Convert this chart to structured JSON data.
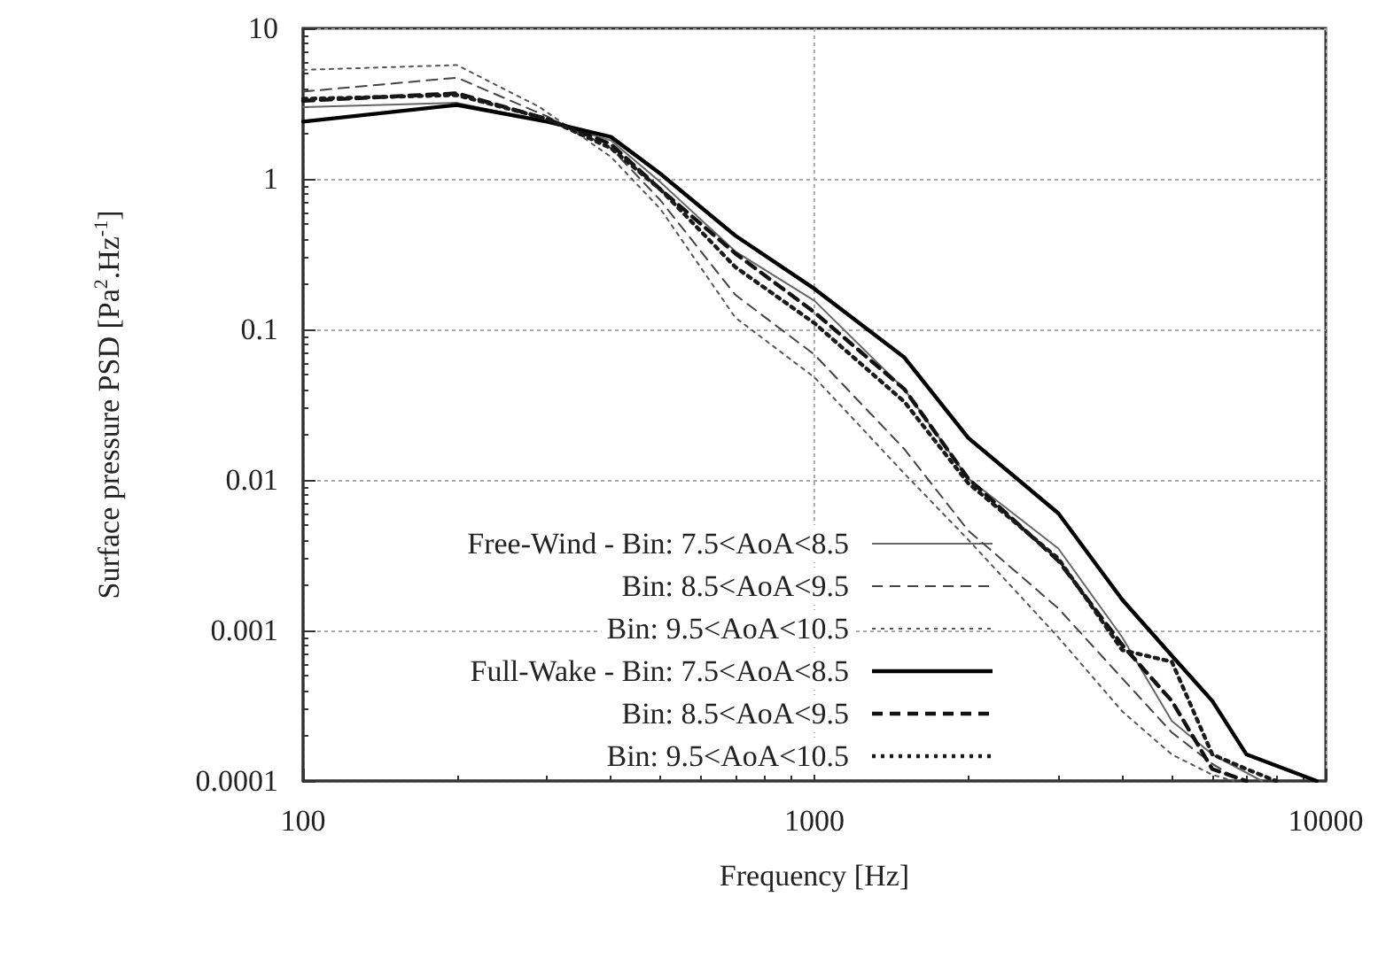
{
  "chart_data": {
    "type": "line",
    "xlabel": "Frequency [Hz]",
    "ylabel": "Surface pressure PSD [Pa$^{2}$.Hz$^{-1}$]",
    "log": "xy",
    "xlim": [
      100,
      10000
    ],
    "xticks": [
      100,
      1000,
      10000
    ],
    "ylim": [
      0.0001,
      10
    ],
    "yticks": [
      0.0001,
      0.001,
      0.01,
      0.1,
      1,
      10
    ],
    "grid": true,
    "legend": "bottom left",
    "marker": "none",
    "series": [
      {
        "name": "Free-Wind - Bin: 7.5<AoA<8.5",
        "color": "#666666",
        "line_style": "solid",
        "x": [
          100,
          200,
          300,
          400,
          500,
          700,
          1000,
          1500,
          2000,
          3000,
          4000,
          5000,
          6000,
          7500
        ],
        "values": [
          3.0,
          3.2,
          2.4,
          1.8,
          0.95,
          0.33,
          0.155,
          0.04,
          0.0102,
          0.0035,
          0.0009,
          0.00025,
          0.00015,
          0.0001
        ]
      },
      {
        "name": "Bin: 8.5<AoA<9.5",
        "color": "#444444",
        "line_style": "dashed",
        "x": [
          100,
          200,
          300,
          400,
          500,
          700,
          1000,
          1500,
          2000,
          3000,
          4000,
          5000,
          6000,
          6800
        ],
        "values": [
          3.8,
          4.7,
          2.6,
          1.6,
          0.72,
          0.17,
          0.068,
          0.016,
          0.0046,
          0.0014,
          0.00048,
          0.00021,
          0.00013,
          0.0001
        ]
      },
      {
        "name": "Bin: 9.5<AoA<10.5",
        "color": "#555555",
        "line_style": "dotted",
        "x": [
          100,
          200,
          290,
          400,
          500,
          700,
          1000,
          1500,
          2000,
          3000,
          4000,
          5000,
          6000,
          6600
        ],
        "values": [
          5.3,
          5.7,
          3.0,
          1.4,
          0.63,
          0.12,
          0.048,
          0.011,
          0.004,
          0.0009,
          0.00029,
          0.00015,
          0.00011,
          0.0001
        ]
      },
      {
        "name": "Full-Wake - Bin: 7.5<AoA<8.5",
        "color": "#000000",
        "line_style": "solid",
        "x": [
          100,
          200,
          300,
          400,
          500,
          700,
          1000,
          1500,
          2000,
          3000,
          4000,
          5000,
          6000,
          7000,
          9600
        ],
        "values": [
          2.4,
          3.1,
          2.4,
          1.9,
          1.08,
          0.42,
          0.186,
          0.065,
          0.019,
          0.006,
          0.0016,
          0.00068,
          0.00034,
          0.00015,
          0.0001
        ]
      },
      {
        "name": "Bin: 8.5<AoA<9.5",
        "color": "#111111",
        "line_style": "dashed",
        "x": [
          100,
          200,
          300,
          400,
          500,
          700,
          1000,
          1500,
          2000,
          3000,
          4000,
          5000,
          6000,
          7000
        ],
        "values": [
          3.3,
          3.7,
          2.5,
          1.7,
          0.85,
          0.32,
          0.13,
          0.04,
          0.0102,
          0.0029,
          0.0008,
          0.00034,
          0.00012,
          0.0001
        ]
      },
      {
        "name": "Bin: 9.5<AoA<10.5",
        "color": "#1a1a1a",
        "line_style": "dotted",
        "x": [
          100,
          200,
          300,
          400,
          500,
          700,
          1000,
          1500,
          2000,
          3000,
          4000,
          5000,
          6000,
          7000,
          8000
        ],
        "values": [
          3.4,
          3.6,
          2.5,
          1.6,
          0.85,
          0.26,
          0.11,
          0.033,
          0.0095,
          0.003,
          0.00074,
          0.00062,
          0.00015,
          0.00012,
          0.0001
        ]
      }
    ]
  }
}
